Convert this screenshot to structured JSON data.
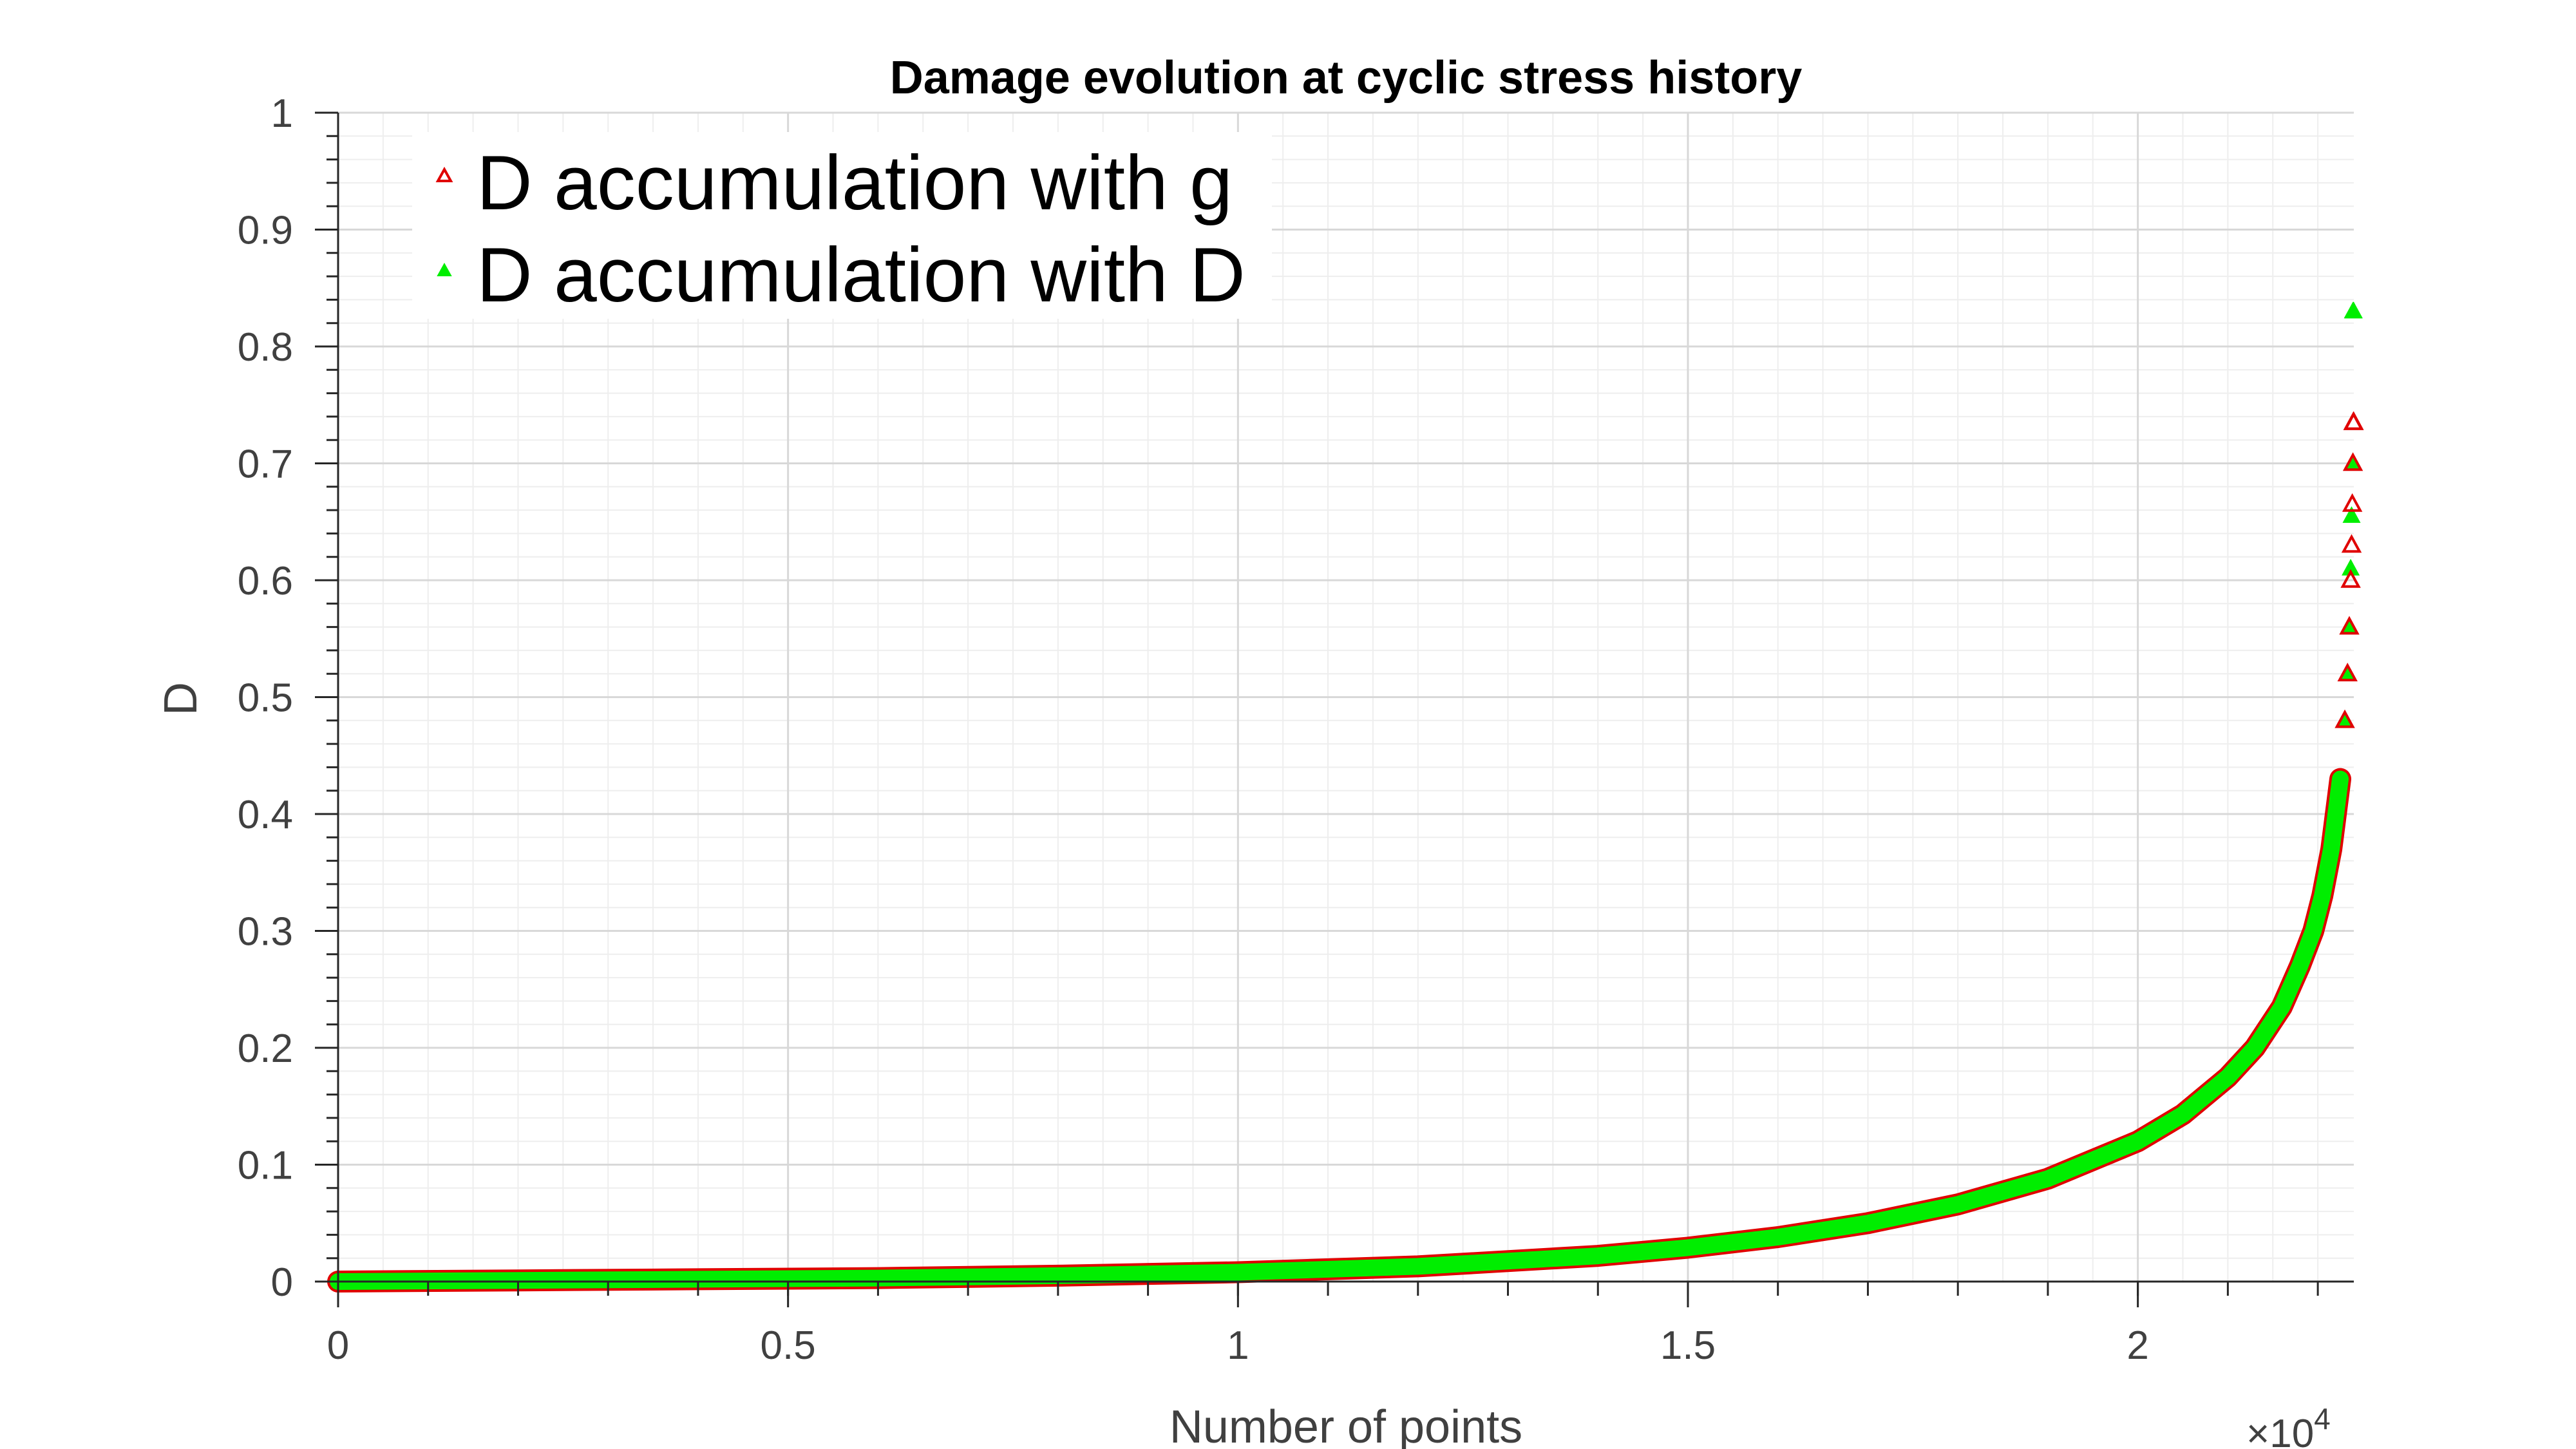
{
  "chart_data": {
    "type": "scatter",
    "title": "Damage evolution at cyclic stress history",
    "xlabel": "Number of points",
    "ylabel": "D",
    "x_exponent_label": "×10",
    "x_exponent_power": "4",
    "xlim": [
      0,
      22400
    ],
    "ylim": [
      0,
      1
    ],
    "xticks": [
      0,
      5000,
      10000,
      15000,
      20000
    ],
    "xtick_labels": [
      "0",
      "0.5",
      "1",
      "1.5",
      "2"
    ],
    "yticks": [
      0,
      0.1,
      0.2,
      0.3,
      0.4,
      0.5,
      0.6,
      0.7,
      0.8,
      0.9,
      1
    ],
    "ytick_labels": [
      "0",
      "0.1",
      "0.2",
      "0.3",
      "0.4",
      "0.5",
      "0.6",
      "0.7",
      "0.8",
      "0.9",
      "1"
    ],
    "grid": true,
    "minor_grid": true,
    "legend_position": "top-left",
    "series": [
      {
        "name": "D accumulation with g",
        "color": "#e00000",
        "marker": "open-triangle",
        "x": [
          0,
          2000,
          4000,
          6000,
          8000,
          10000,
          12000,
          14000,
          15000,
          16000,
          17000,
          18000,
          19000,
          20000,
          20500,
          21000,
          21300,
          21600,
          21800,
          21950,
          22050,
          22150,
          22250,
          22300,
          22330,
          22350,
          22365,
          22375,
          22383,
          22390,
          22395,
          22399
        ],
        "y": [
          0,
          0.001,
          0.002,
          0.003,
          0.005,
          0.008,
          0.013,
          0.022,
          0.029,
          0.038,
          0.05,
          0.066,
          0.088,
          0.12,
          0.143,
          0.175,
          0.2,
          0.235,
          0.27,
          0.3,
          0.33,
          0.37,
          0.43,
          0.48,
          0.52,
          0.56,
          0.6,
          0.63,
          0.665,
          0.7,
          0.735,
          0.735
        ]
      },
      {
        "name": "D accumulation with D",
        "color": "#00ee00",
        "marker": "filled-triangle",
        "x": [
          0,
          2000,
          4000,
          6000,
          8000,
          10000,
          12000,
          14000,
          15000,
          16000,
          17000,
          18000,
          19000,
          20000,
          20500,
          21000,
          21300,
          21600,
          21800,
          21950,
          22050,
          22150,
          22250,
          22300,
          22330,
          22350,
          22365,
          22375,
          22383,
          22390,
          22395,
          22399
        ],
        "y": [
          0,
          0.001,
          0.002,
          0.003,
          0.005,
          0.008,
          0.013,
          0.022,
          0.029,
          0.038,
          0.05,
          0.066,
          0.088,
          0.12,
          0.143,
          0.175,
          0.2,
          0.235,
          0.27,
          0.3,
          0.33,
          0.37,
          0.43,
          0.48,
          0.52,
          0.56,
          0.61,
          0.655,
          0.7,
          0.83,
          0.83,
          0.83
        ]
      }
    ]
  }
}
